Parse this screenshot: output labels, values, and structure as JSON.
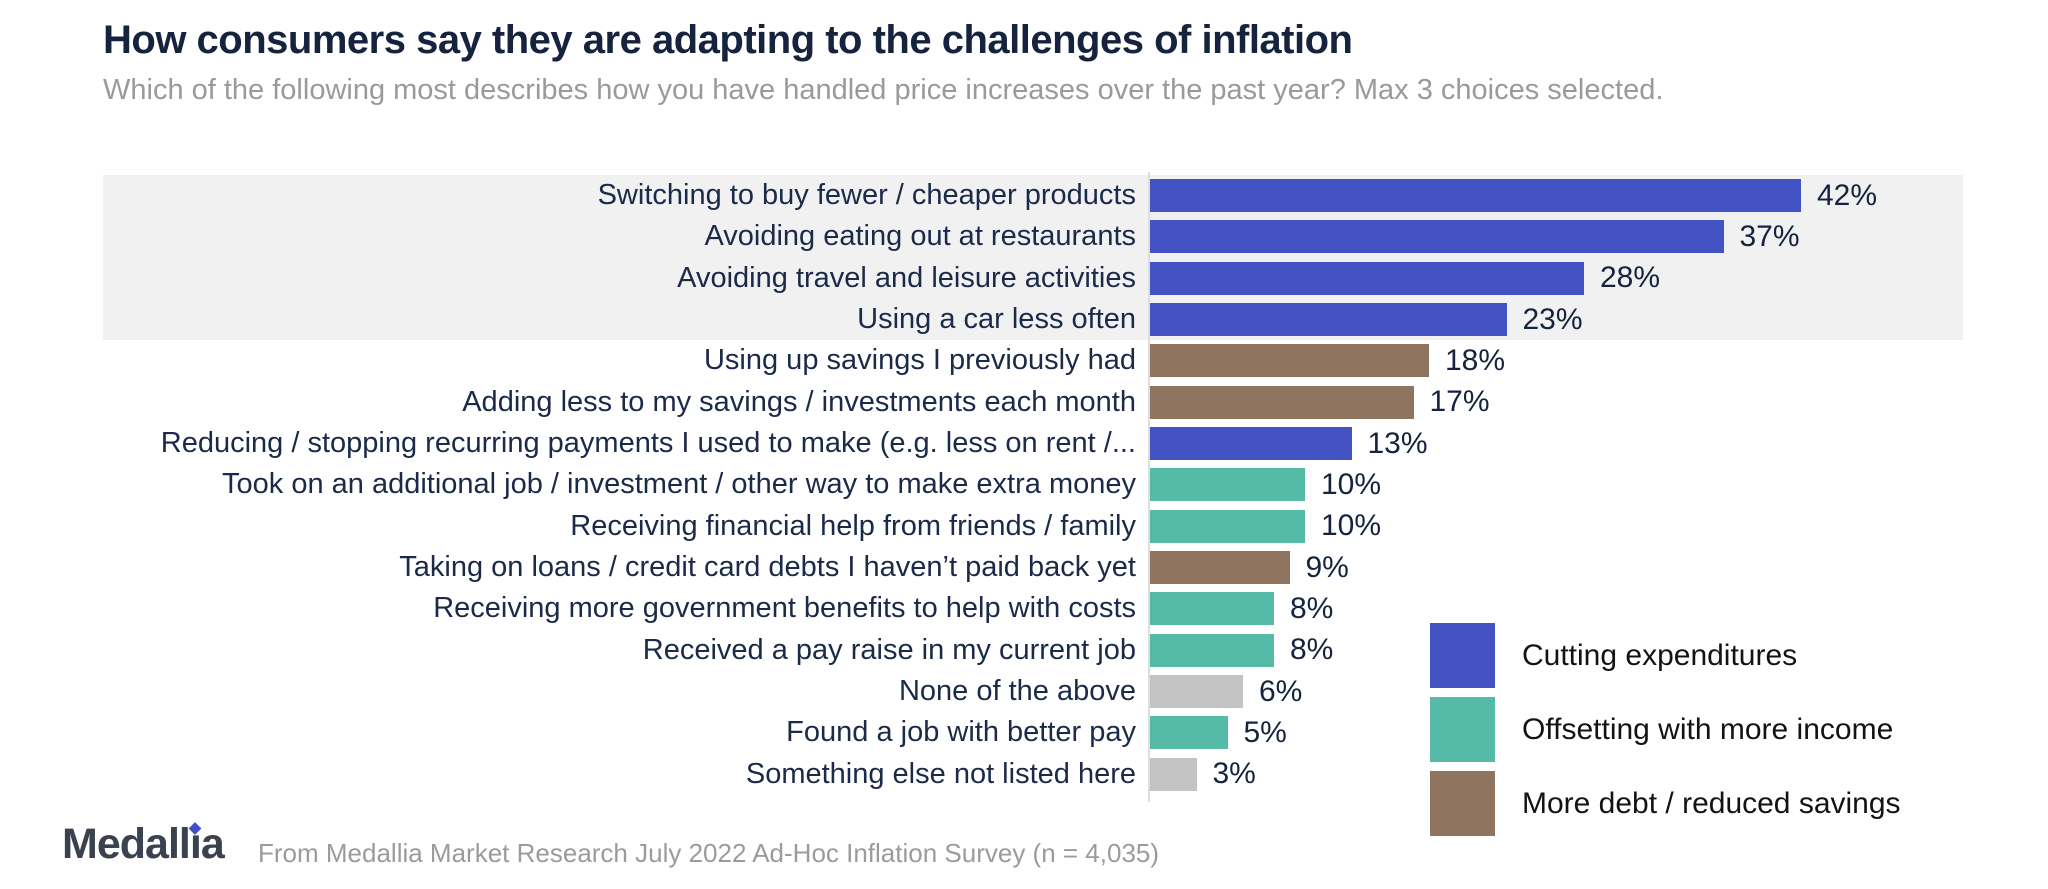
{
  "title": "How consumers say they are adapting to the challenges of inflation",
  "subtitle": "Which of the following most describes how you have handled price increases over the past year? Max 3 choices selected.",
  "colors": {
    "cutting_expenditures": "#4353c4",
    "offsetting_with_more_income": "#55bba6",
    "more_debt_reduced_savings": "#8f755f",
    "other": "#c3c3c3",
    "highlight_band": "#f1f1f2",
    "title_navy": "#16233e",
    "subtitle_gray": "#9a9a9a"
  },
  "footer": {
    "logo": "Medallia",
    "source": "From Medallia Market Research July 2022 Ad-Hoc Inflation Survey (n = 4,035)"
  },
  "chart_data": {
    "type": "bar",
    "orientation": "horizontal",
    "value_unit": "%",
    "xlim": [
      0,
      45
    ],
    "grid": false,
    "legend_position": "bottom-right",
    "title": "How consumers say they are adapting to the challenges of inflation",
    "subtitle": "Which of the following most describes how you have handled price increases over the past year? Max 3 choices selected.",
    "categories": [
      "Switching to buy fewer / cheaper products",
      "Avoiding eating out at restaurants",
      "Avoiding travel and leisure activities",
      "Using a car less often",
      "Using up savings I previously had",
      "Adding less to my savings / investments each month",
      "Reducing / stopping recurring payments I used to make (e.g. less on rent /...",
      "Took on an additional job / investment / other way to make extra money",
      "Receiving financial help from friends / family",
      "Taking on loans / credit card debts I haven’t paid back yet",
      "Receiving more government benefits to help with costs",
      "Received a pay raise in my current job",
      "None of the above",
      "Found a job with better pay",
      "Something else not listed here"
    ],
    "values": [
      42,
      37,
      28,
      23,
      18,
      17,
      13,
      10,
      10,
      9,
      8,
      8,
      6,
      5,
      3
    ],
    "groups": [
      "cutting_expenditures",
      "cutting_expenditures",
      "cutting_expenditures",
      "cutting_expenditures",
      "more_debt_reduced_savings",
      "more_debt_reduced_savings",
      "cutting_expenditures",
      "offsetting_with_more_income",
      "offsetting_with_more_income",
      "more_debt_reduced_savings",
      "offsetting_with_more_income",
      "offsetting_with_more_income",
      "other",
      "offsetting_with_more_income",
      "other"
    ],
    "highlighted_rows": [
      0,
      1,
      2,
      3
    ],
    "legend": [
      {
        "label": "Cutting expenditures",
        "color": "#4353c4"
      },
      {
        "label": "Offsetting with more income",
        "color": "#55bba6"
      },
      {
        "label": "More debt / reduced savings",
        "color": "#8f755f"
      }
    ]
  }
}
